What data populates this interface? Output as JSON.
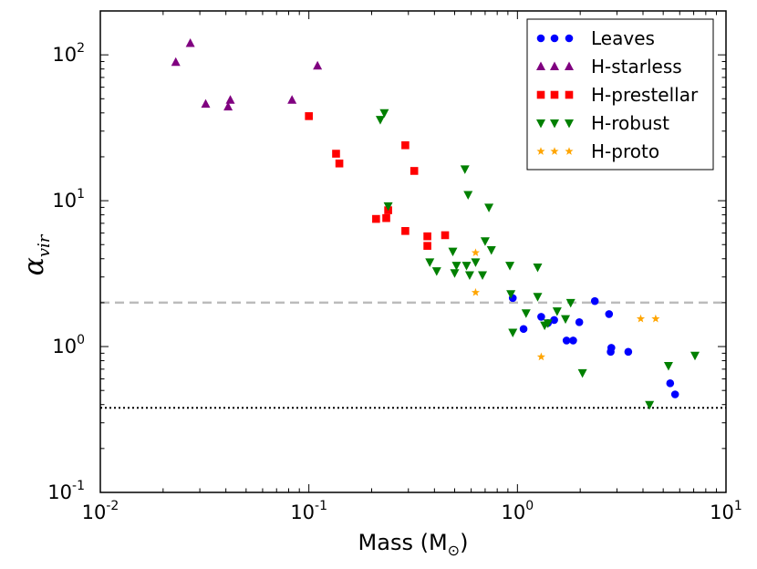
{
  "chart_data": {
    "type": "scatter",
    "xscale": "log",
    "yscale": "log",
    "xlim": [
      0.01,
      10
    ],
    "ylim": [
      0.1,
      200
    ],
    "xlabel": "Mass (M",
    "xlabel_sub": "⊙",
    "xlabel_close": ")",
    "ylabel": "α",
    "ylabel_sub": "vir",
    "xticks": [
      {
        "value": 0.01,
        "base": "10",
        "exp": "-2"
      },
      {
        "value": 0.1,
        "base": "10",
        "exp": "-1"
      },
      {
        "value": 1,
        "base": "10",
        "exp": "0"
      },
      {
        "value": 10,
        "base": "10",
        "exp": "1"
      }
    ],
    "yticks": [
      {
        "value": 0.1,
        "base": "10",
        "exp": "-1"
      },
      {
        "value": 1,
        "base": "10",
        "exp": "0"
      },
      {
        "value": 10,
        "base": "10",
        "exp": "1"
      },
      {
        "value": 100,
        "base": "10",
        "exp": "2"
      }
    ],
    "reference_lines": [
      {
        "name": "alpha-2-reference",
        "y": 2.0,
        "style": "dashed",
        "color": "#bbbbbb"
      },
      {
        "name": "alpha-threshold-reference",
        "y": 0.38,
        "style": "dotted",
        "color": "#000000"
      }
    ],
    "legend_location": "top-right",
    "series": [
      {
        "name": "Leaves",
        "marker": "circle",
        "color": "#0000ff",
        "points": [
          [
            0.95,
            2.15
          ],
          [
            1.07,
            1.32
          ],
          [
            1.3,
            1.6
          ],
          [
            1.4,
            1.45
          ],
          [
            1.5,
            1.52
          ],
          [
            1.72,
            1.1
          ],
          [
            1.85,
            1.1
          ],
          [
            1.98,
            1.47
          ],
          [
            2.35,
            2.05
          ],
          [
            2.75,
            1.67
          ],
          [
            2.8,
            0.92
          ],
          [
            2.82,
            0.98
          ],
          [
            3.4,
            0.92
          ],
          [
            5.4,
            0.56
          ],
          [
            5.7,
            0.47
          ]
        ]
      },
      {
        "name": "H-starless",
        "marker": "triangle-up",
        "color": "#800080",
        "points": [
          [
            0.023,
            89
          ],
          [
            0.027,
            120
          ],
          [
            0.032,
            46
          ],
          [
            0.041,
            44
          ],
          [
            0.042,
            49
          ],
          [
            0.083,
            49
          ],
          [
            0.11,
            84
          ]
        ]
      },
      {
        "name": "H-prestellar",
        "marker": "square",
        "color": "#ff0000",
        "points": [
          [
            0.1,
            38
          ],
          [
            0.135,
            21
          ],
          [
            0.14,
            18
          ],
          [
            0.21,
            7.5
          ],
          [
            0.235,
            7.6
          ],
          [
            0.24,
            8.6
          ],
          [
            0.29,
            6.2
          ],
          [
            0.29,
            24
          ],
          [
            0.32,
            16
          ],
          [
            0.37,
            4.9
          ],
          [
            0.37,
            5.7
          ],
          [
            0.45,
            5.8
          ]
        ]
      },
      {
        "name": "H-robust",
        "marker": "triangle-down",
        "color": "#008000",
        "points": [
          [
            0.22,
            36
          ],
          [
            0.23,
            40
          ],
          [
            0.24,
            9.2
          ],
          [
            0.38,
            3.8
          ],
          [
            0.41,
            3.3
          ],
          [
            0.49,
            4.5
          ],
          [
            0.5,
            3.2
          ],
          [
            0.51,
            3.6
          ],
          [
            0.56,
            16.5
          ],
          [
            0.57,
            3.6
          ],
          [
            0.58,
            11
          ],
          [
            0.59,
            3.1
          ],
          [
            0.63,
            3.8
          ],
          [
            0.68,
            3.1
          ],
          [
            0.7,
            5.3
          ],
          [
            0.73,
            9
          ],
          [
            0.75,
            4.6
          ],
          [
            0.92,
            3.6
          ],
          [
            0.93,
            2.3
          ],
          [
            0.95,
            1.25
          ],
          [
            1.1,
            1.7
          ],
          [
            1.25,
            2.2
          ],
          [
            1.25,
            3.5
          ],
          [
            1.35,
            1.4
          ],
          [
            1.4,
            1.45
          ],
          [
            1.55,
            1.75
          ],
          [
            1.7,
            1.55
          ],
          [
            1.8,
            2.0
          ],
          [
            2.05,
            0.66
          ],
          [
            4.3,
            0.4
          ],
          [
            5.3,
            0.74
          ],
          [
            7.1,
            0.87
          ]
        ]
      },
      {
        "name": "H-proto",
        "marker": "star",
        "color": "#ffa500",
        "points": [
          [
            0.63,
            4.4
          ],
          [
            0.63,
            2.35
          ],
          [
            1.3,
            0.85
          ],
          [
            3.9,
            1.55
          ],
          [
            4.6,
            1.55
          ]
        ]
      }
    ]
  }
}
